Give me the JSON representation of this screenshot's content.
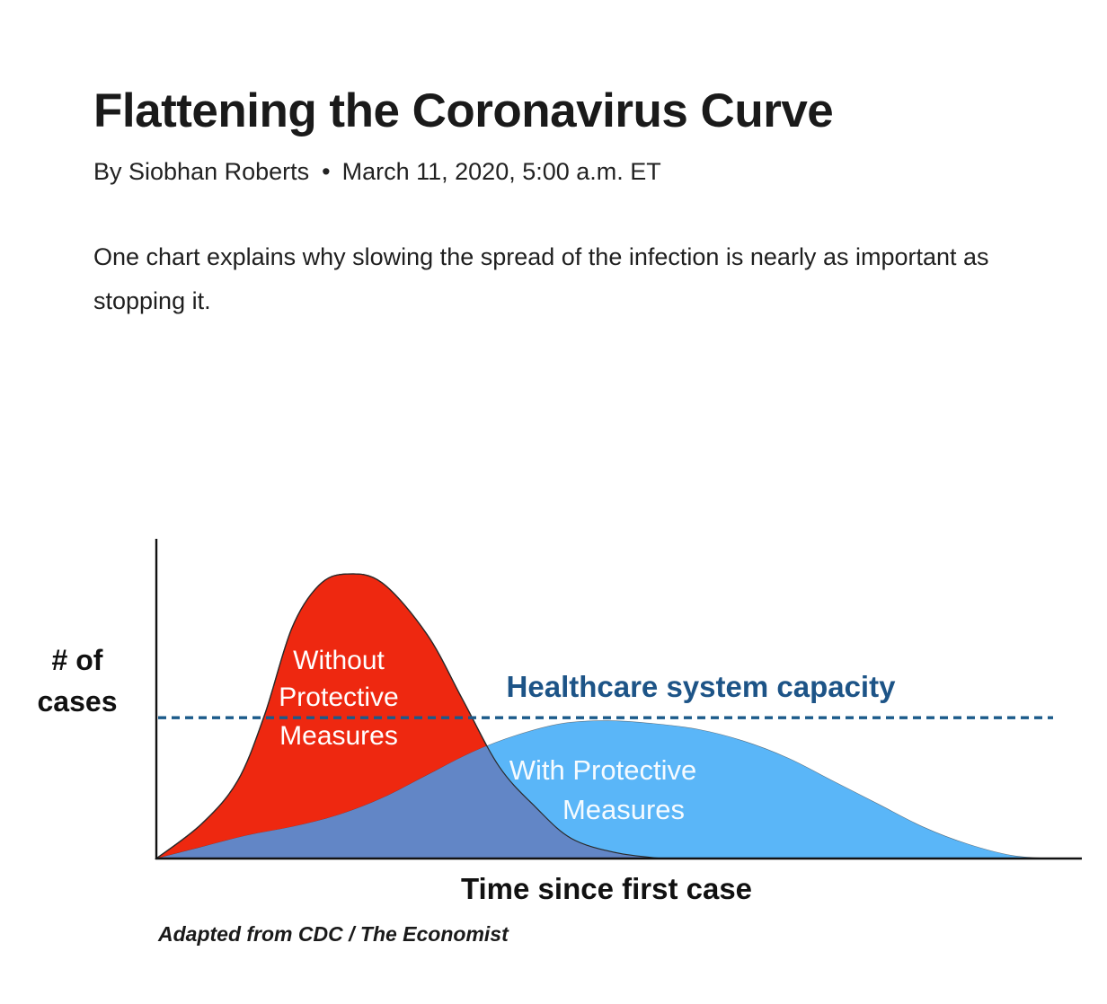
{
  "article": {
    "headline": "Flattening the Coronavirus Curve",
    "author": "By Siobhan Roberts",
    "separator": "•",
    "date": "March 11, 2020, 5:00 a.m. ET",
    "dek": "One chart explains why slowing the spread of the infection is nearly as important as stopping it."
  },
  "chart_data": {
    "type": "area",
    "title": "",
    "xlabel": "Time since first case",
    "ylabel_lines": [
      "# of",
      "cases"
    ],
    "source": "Adapted from CDC / The Economist",
    "axis_ticks": "none",
    "grid": false,
    "x_range": [
      0,
      100
    ],
    "y_range": [
      0,
      100
    ],
    "reference_line": {
      "label": "Healthcare system capacity",
      "value": 49,
      "style": "dashed",
      "color": "#1b5a8a"
    },
    "series": [
      {
        "name": "Without Protective Measures",
        "label_lines": [
          "Without",
          "Protective",
          "Measures"
        ],
        "color": "#ee2810",
        "label_color": "#ffffff",
        "x": [
          0,
          5,
          9,
          12,
          15,
          18,
          21,
          25,
          30,
          34,
          38,
          42,
          46,
          51,
          56
        ],
        "y": [
          0,
          12,
          27,
          50,
          80,
          95,
          99,
          96,
          78,
          55,
          32,
          18,
          7,
          2,
          0
        ]
      },
      {
        "name": "With Protective Measures",
        "label_lines": [
          "With Protective",
          "Measures"
        ],
        "color": "#5ab6f8",
        "label_color": "#ffffff",
        "x": [
          0,
          5,
          10,
          15,
          20,
          25,
          30,
          35,
          40,
          45,
          50,
          55,
          60,
          65,
          70,
          75,
          80,
          85,
          90,
          95,
          100
        ],
        "y": [
          0,
          4,
          8,
          11,
          15,
          21,
          29,
          37,
          43,
          47,
          48,
          47,
          45,
          41,
          35,
          27,
          19,
          11,
          5,
          1,
          0
        ]
      }
    ],
    "overlap_color": "#6286c6"
  }
}
